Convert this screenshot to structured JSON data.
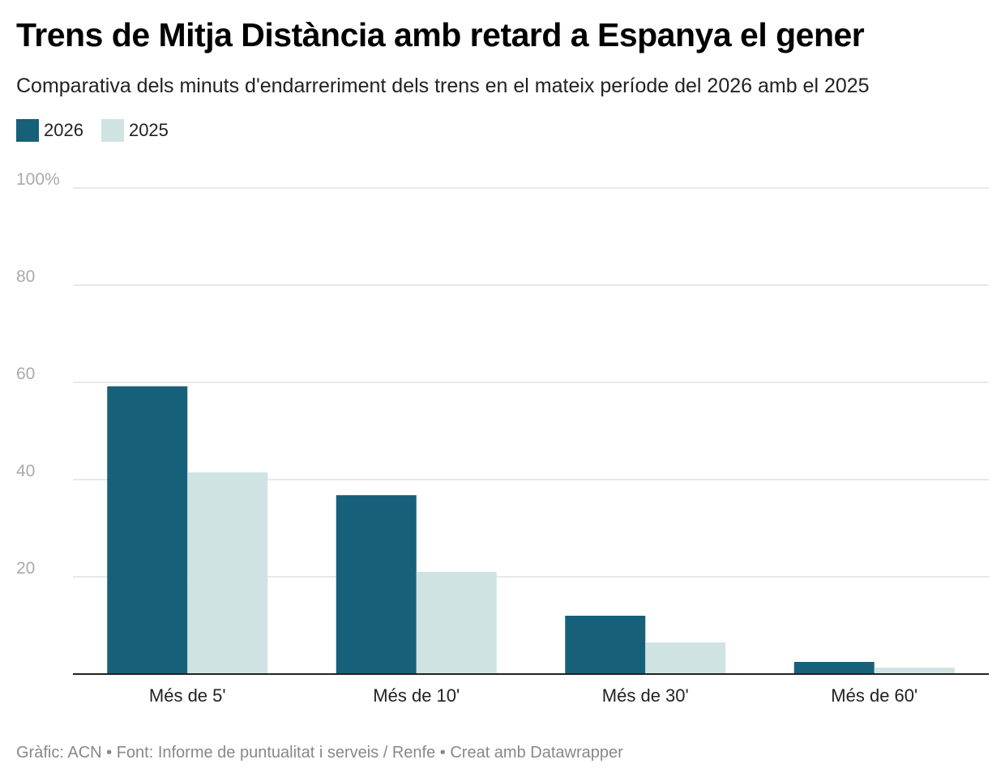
{
  "title": "Trens de Mitja Distància amb retard a Espanya el gener",
  "subtitle": "Comparativa dels minuts d'endarreriment dels trens en el mateix període del 2026 amb el 2025",
  "footer": "Gràfic: ACN • Font: Informe de puntualitat i serveis / Renfe • Creat amb Datawrapper",
  "chart_data": {
    "type": "bar",
    "categories": [
      "Més de 5'",
      "Més de 10'",
      "Més de 30'",
      "Més de 60'"
    ],
    "series": [
      {
        "name": "2026",
        "color": "#17607a",
        "values": [
          59.2,
          36.8,
          12.0,
          2.5
        ]
      },
      {
        "name": "2025",
        "color": "#cfe3e3",
        "values": [
          41.5,
          21.0,
          6.5,
          1.3
        ]
      }
    ],
    "ylim": [
      0,
      100
    ],
    "yticks": [
      20,
      40,
      60,
      80,
      100
    ],
    "ytick_labels": [
      "20",
      "40",
      "60",
      "80",
      "100%"
    ],
    "grid": true,
    "legend": "top-left"
  }
}
